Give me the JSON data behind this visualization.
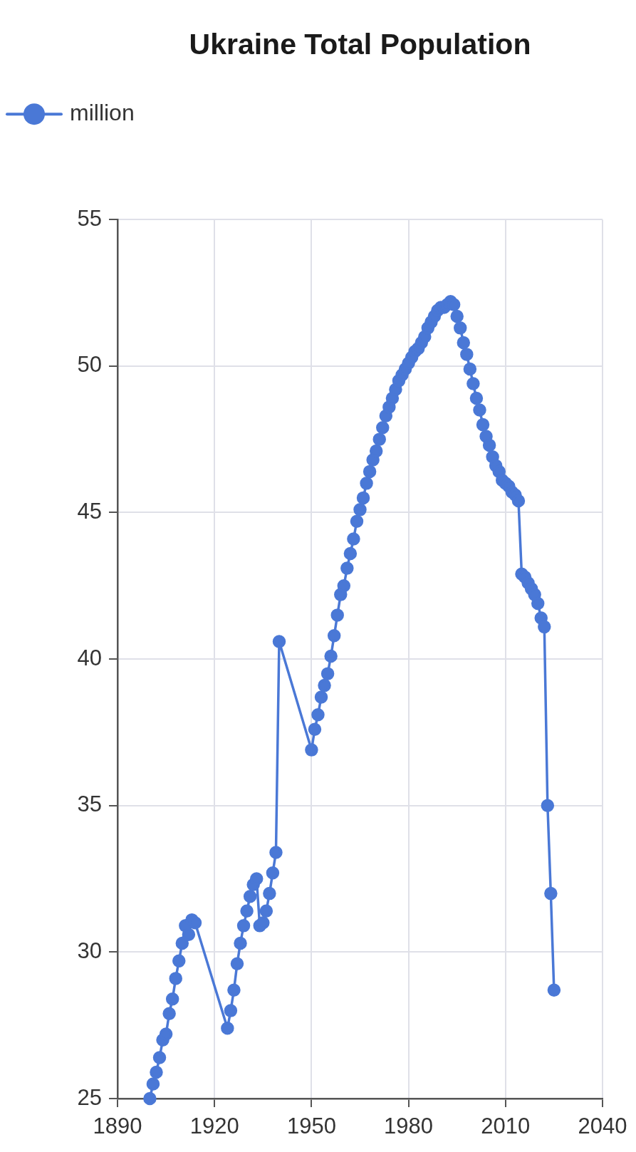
{
  "chart_data": {
    "type": "line",
    "title": "Ukraine Total Population",
    "x": [
      1900,
      1901,
      1902,
      1903,
      1904,
      1905,
      1906,
      1907,
      1908,
      1909,
      1910,
      1911,
      1912,
      1913,
      1914,
      1924,
      1925,
      1926,
      1927,
      1928,
      1929,
      1930,
      1931,
      1932,
      1933,
      1934,
      1935,
      1936,
      1937,
      1938,
      1939,
      1940,
      1950,
      1951,
      1952,
      1953,
      1954,
      1955,
      1956,
      1957,
      1958,
      1959,
      1960,
      1961,
      1962,
      1963,
      1964,
      1965,
      1966,
      1967,
      1968,
      1969,
      1970,
      1971,
      1972,
      1973,
      1974,
      1975,
      1976,
      1977,
      1978,
      1979,
      1980,
      1981,
      1982,
      1983,
      1984,
      1985,
      1986,
      1987,
      1988,
      1989,
      1990,
      1991,
      1992,
      1993,
      1994,
      1995,
      1996,
      1997,
      1998,
      1999,
      2000,
      2001,
      2002,
      2003,
      2004,
      2005,
      2006,
      2007,
      2008,
      2009,
      2010,
      2011,
      2012,
      2013,
      2014,
      2015,
      2016,
      2017,
      2018,
      2019,
      2020,
      2021,
      2022,
      2023,
      2024,
      2025
    ],
    "series": [
      {
        "name": "million",
        "color": "#4a78d6",
        "values": [
          25.0,
          25.5,
          25.9,
          26.4,
          27.0,
          27.2,
          27.9,
          28.4,
          29.1,
          29.7,
          30.3,
          30.9,
          30.6,
          31.1,
          31.0,
          27.4,
          28.0,
          28.7,
          29.6,
          30.3,
          30.9,
          31.4,
          31.9,
          32.3,
          32.5,
          30.9,
          31.0,
          31.4,
          32.0,
          32.7,
          33.4,
          40.6,
          36.9,
          37.6,
          38.1,
          38.7,
          39.1,
          39.5,
          40.1,
          40.8,
          41.5,
          42.2,
          42.5,
          43.1,
          43.6,
          44.1,
          44.7,
          45.1,
          45.5,
          46.0,
          46.4,
          46.8,
          47.1,
          47.5,
          47.9,
          48.3,
          48.6,
          48.9,
          49.2,
          49.5,
          49.7,
          49.9,
          50.1,
          50.3,
          50.5,
          50.6,
          50.8,
          51.0,
          51.3,
          51.5,
          51.7,
          51.9,
          52.0,
          52.0,
          52.1,
          52.2,
          52.1,
          51.7,
          51.3,
          50.8,
          50.4,
          49.9,
          49.4,
          48.9,
          48.5,
          48.0,
          47.6,
          47.3,
          46.9,
          46.6,
          46.4,
          46.1,
          46.0,
          45.9,
          45.7,
          45.6,
          45.4,
          42.9,
          42.8,
          42.6,
          42.4,
          42.2,
          41.9,
          41.4,
          41.1,
          35.0,
          32.0,
          28.7
        ]
      }
    ],
    "xlim": [
      1890,
      2040
    ],
    "xticks": [
      1890,
      1920,
      1950,
      1980,
      2010,
      2040
    ],
    "ylim": [
      25,
      55
    ],
    "yticks": [
      25,
      30,
      35,
      40,
      45,
      50,
      55
    ],
    "grid": true,
    "legend": "top left",
    "marker": "circle",
    "line_style": "solid"
  }
}
